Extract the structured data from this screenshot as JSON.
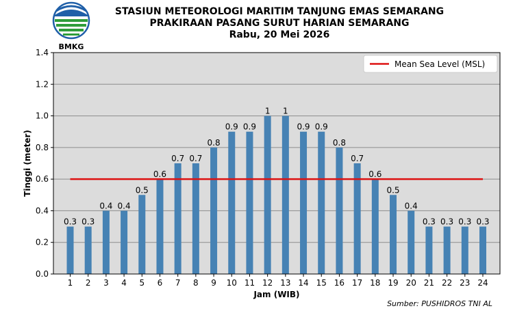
{
  "header": {
    "logo_text": "BMKG",
    "title_lines": [
      "STASIUN METEOROLOGI MARITIM TANJUNG EMAS SEMARANG",
      "PRAKIRAAN PASANG SURUT HARIAN SEMARANG",
      "Rabu, 20 Mei 2026"
    ]
  },
  "source": "Sumber: PUSHIDROS TNI AL",
  "colors": {
    "bar": "#4682b4",
    "msl_line": "#dd1111",
    "plot_bg": "#dcdcdc",
    "grid": "#8c8c8c",
    "logo_blue": "#1f5fa8",
    "logo_green": "#2e9d3a"
  },
  "chart_data": {
    "type": "bar",
    "categories": [
      "1",
      "2",
      "3",
      "4",
      "5",
      "6",
      "7",
      "8",
      "9",
      "10",
      "11",
      "12",
      "13",
      "14",
      "15",
      "16",
      "17",
      "18",
      "19",
      "20",
      "21",
      "22",
      "23",
      "24"
    ],
    "values": [
      0.3,
      0.3,
      0.4,
      0.4,
      0.5,
      0.6,
      0.7,
      0.7,
      0.8,
      0.9,
      0.9,
      1,
      1,
      0.9,
      0.9,
      0.8,
      0.7,
      0.6,
      0.5,
      0.4,
      0.3,
      0.3,
      0.3,
      0.3
    ],
    "value_labels": [
      "0.3",
      "0.3",
      "0.4",
      "0.4",
      "0.5",
      "0.6",
      "0.7",
      "0.7",
      "0.8",
      "0.9",
      "0.9",
      "1",
      "1",
      "0.9",
      "0.9",
      "0.8",
      "0.7",
      "0.6",
      "0.5",
      "0.4",
      "0.3",
      "0.3",
      "0.3",
      "0.3"
    ],
    "xlabel": "Jam (WIB)",
    "ylabel": "Tinggi (meter)",
    "ylim": [
      0,
      1.4
    ],
    "yticks": [
      "0.0",
      "0.2",
      "0.4",
      "0.6",
      "0.8",
      "1.0",
      "1.2",
      "1.4"
    ],
    "ytick_values": [
      0,
      0.2,
      0.4,
      0.6,
      0.8,
      1.0,
      1.2,
      1.4
    ],
    "reference_line": {
      "name": "Mean Sea Level (MSL)",
      "value": 0.6
    },
    "grid": true,
    "legend_position": "top-right"
  }
}
